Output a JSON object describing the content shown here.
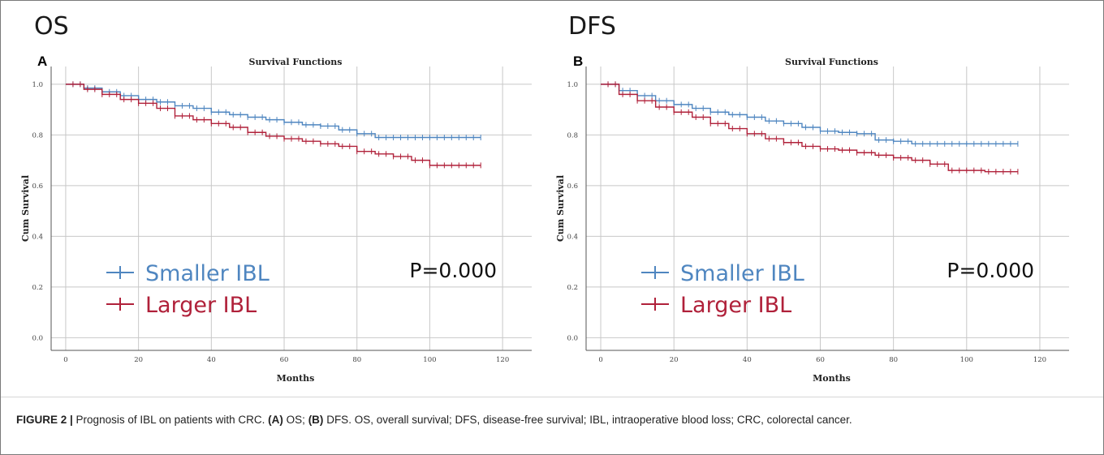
{
  "panels": [
    {
      "heading": "OS",
      "letter": "A"
    },
    {
      "heading": "DFS",
      "letter": "B"
    }
  ],
  "legend": {
    "smaller": "Smaller IBL",
    "larger": "Larger IBL"
  },
  "colors": {
    "smaller": "#4f86c0",
    "larger": "#b0213a",
    "grid": "#c8c8c8",
    "axis": "#555555"
  },
  "caption": {
    "label": "FIGURE 2 |",
    "text": " Prognosis of IBL on patients with CRC. ",
    "a": "(A)",
    "a_text": " OS; ",
    "b": "(B)",
    "b_text": " DFS. OS, overall survival; DFS, disease-free survival; IBL, intraoperative blood loss; CRC, colorectal cancer."
  },
  "chart_data": [
    {
      "type": "line",
      "title": "Survival Functions",
      "xlabel": "Months",
      "ylabel": "Cum Survival",
      "xlim": [
        -4,
        128
      ],
      "ylim": [
        -0.05,
        1.07
      ],
      "xticks": [
        0,
        20,
        40,
        60,
        80,
        100,
        120
      ],
      "yticks": [
        0.0,
        0.2,
        0.4,
        0.6,
        0.8,
        1.0
      ],
      "ytick_labels": [
        "0.0",
        "0.2",
        "0.4",
        "0.6",
        "0.8",
        "1.0"
      ],
      "grid": true,
      "annotation": "P=0.000",
      "series": [
        {
          "name": "Smaller IBL",
          "x": [
            0,
            5,
            10,
            15,
            20,
            25,
            30,
            35,
            40,
            45,
            50,
            55,
            60,
            65,
            70,
            75,
            80,
            85,
            90,
            95,
            100,
            105,
            110,
            114
          ],
          "y": [
            1.0,
            0.985,
            0.97,
            0.955,
            0.94,
            0.93,
            0.915,
            0.905,
            0.89,
            0.88,
            0.87,
            0.86,
            0.85,
            0.84,
            0.835,
            0.82,
            0.805,
            0.79,
            0.79,
            0.79,
            0.79,
            0.79,
            0.79,
            0.79
          ]
        },
        {
          "name": "Larger IBL",
          "x": [
            0,
            5,
            10,
            15,
            20,
            25,
            30,
            35,
            40,
            45,
            50,
            55,
            60,
            65,
            70,
            75,
            80,
            85,
            90,
            95,
            100,
            105,
            110,
            114
          ],
          "y": [
            1.0,
            0.98,
            0.96,
            0.94,
            0.925,
            0.905,
            0.875,
            0.86,
            0.845,
            0.83,
            0.81,
            0.795,
            0.785,
            0.775,
            0.765,
            0.755,
            0.735,
            0.725,
            0.715,
            0.7,
            0.68,
            0.68,
            0.68,
            0.68
          ]
        }
      ]
    },
    {
      "type": "line",
      "title": "Survival Functions",
      "xlabel": "Months",
      "ylabel": "Cum Survival",
      "xlim": [
        -4,
        128
      ],
      "ylim": [
        -0.05,
        1.07
      ],
      "xticks": [
        0,
        20,
        40,
        60,
        80,
        100,
        120
      ],
      "yticks": [
        0.0,
        0.2,
        0.4,
        0.6,
        0.8,
        1.0
      ],
      "ytick_labels": [
        "0.0",
        "0.2",
        "0.4",
        "0.6",
        "0.8",
        "1.0"
      ],
      "grid": true,
      "annotation": "P=0.000",
      "series": [
        {
          "name": "Smaller IBL",
          "x": [
            0,
            5,
            10,
            15,
            20,
            25,
            30,
            35,
            40,
            45,
            50,
            55,
            60,
            65,
            70,
            75,
            80,
            85,
            90,
            95,
            100,
            105,
            110,
            114
          ],
          "y": [
            1.0,
            0.975,
            0.955,
            0.935,
            0.92,
            0.905,
            0.89,
            0.88,
            0.87,
            0.855,
            0.845,
            0.83,
            0.815,
            0.81,
            0.805,
            0.78,
            0.775,
            0.765,
            0.765,
            0.765,
            0.765,
            0.765,
            0.765,
            0.765
          ]
        },
        {
          "name": "Larger IBL",
          "x": [
            0,
            5,
            10,
            15,
            20,
            25,
            30,
            35,
            40,
            45,
            50,
            55,
            60,
            65,
            70,
            75,
            80,
            85,
            90,
            95,
            100,
            105,
            110,
            114
          ],
          "y": [
            1.0,
            0.96,
            0.935,
            0.91,
            0.89,
            0.87,
            0.845,
            0.825,
            0.805,
            0.785,
            0.77,
            0.755,
            0.745,
            0.74,
            0.73,
            0.72,
            0.71,
            0.7,
            0.685,
            0.66,
            0.66,
            0.655,
            0.655,
            0.655
          ]
        }
      ]
    }
  ]
}
